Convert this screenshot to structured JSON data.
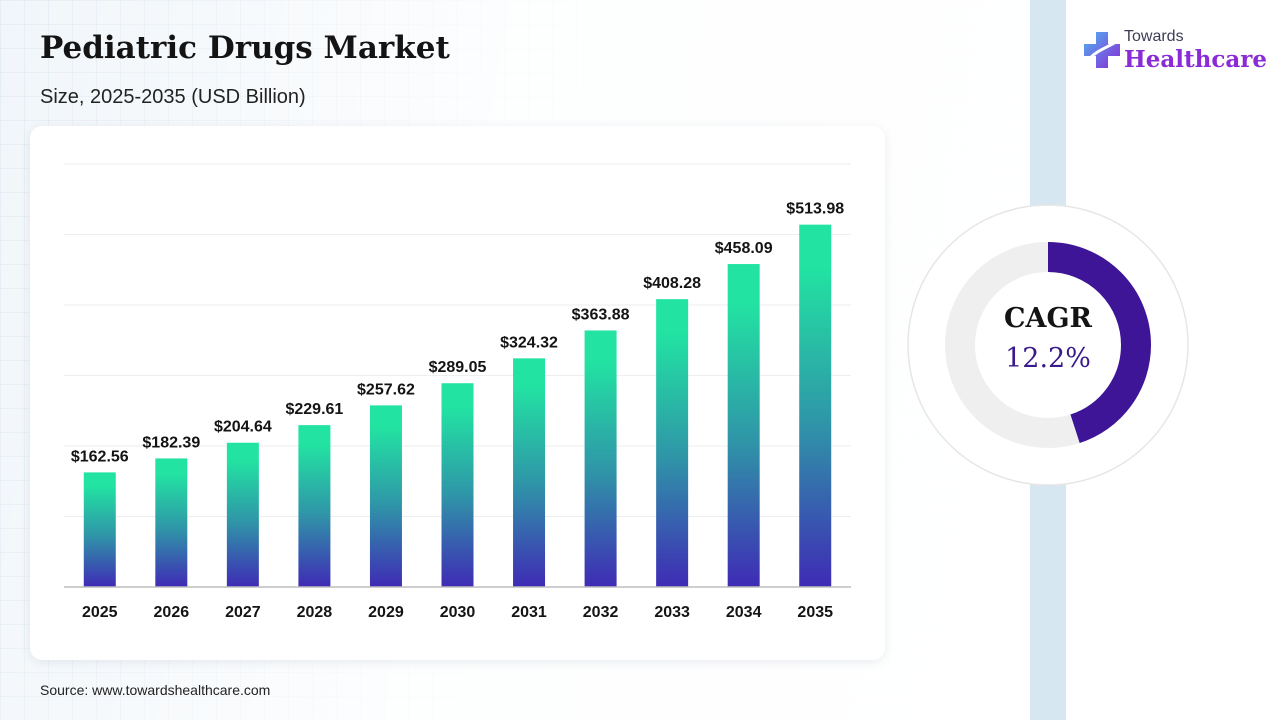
{
  "header": {
    "title": "Pediatric Drugs Market",
    "subtitle": "Size, 2025-2035 (USD Billion)"
  },
  "source": "Source: www.towardshealthcare.com",
  "logo": {
    "line1": "Towards",
    "line2": "Healthcare",
    "icon": "medical-cross-logo-icon"
  },
  "cagr": {
    "label": "CAGR",
    "value": "12.2%",
    "ring_fill_fraction": 0.45,
    "ring_color": "#3d1596",
    "track_color": "#efefef"
  },
  "chart_data": {
    "type": "bar",
    "title": "",
    "xlabel": "",
    "ylabel": "",
    "categories": [
      "2025",
      "2026",
      "2027",
      "2028",
      "2029",
      "2030",
      "2031",
      "2032",
      "2033",
      "2034",
      "2035"
    ],
    "values": [
      162.56,
      182.39,
      204.64,
      229.61,
      257.62,
      289.05,
      324.32,
      363.88,
      408.28,
      458.09,
      513.98
    ],
    "value_labels": [
      "$162.56",
      "$182.39",
      "$204.64",
      "$229.61",
      "$257.62",
      "$289.05",
      "$324.32",
      "$363.88",
      "$408.28",
      "$458.09",
      "$513.98"
    ],
    "ylim": [
      0,
      600
    ],
    "grid": true,
    "gradient_top": "#22e3a2",
    "gradient_bottom": "#3f2bb5"
  }
}
